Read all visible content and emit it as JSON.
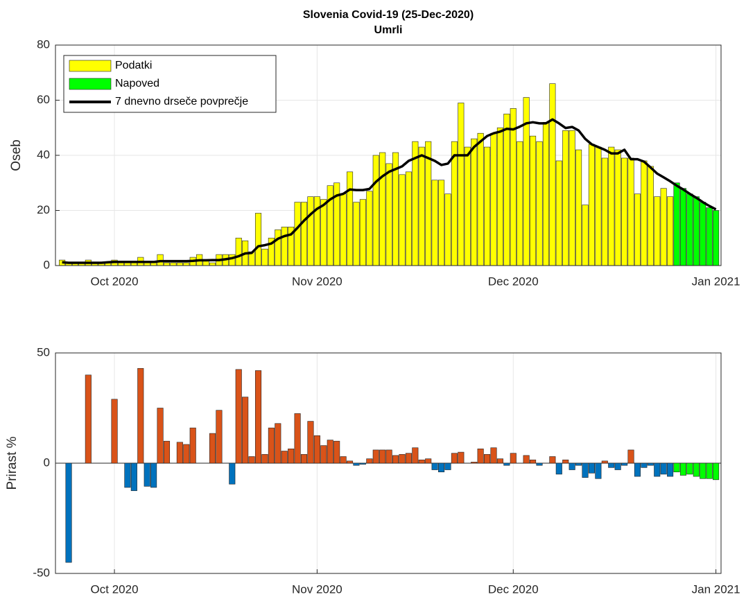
{
  "chart_data": [
    {
      "type": "bar",
      "title": "Slovenia Covid-19 (25-Dec-2020)",
      "subtitle": "Umrli",
      "ylabel": "Oseb",
      "categories": [
        null,
        null,
        null,
        null,
        null,
        null,
        null,
        null,
        "Oct 2020",
        null,
        null,
        null,
        null,
        null,
        null,
        null,
        null,
        null,
        null,
        null,
        null,
        null,
        null,
        null,
        null,
        null,
        null,
        null,
        null,
        null,
        null,
        null,
        null,
        null,
        null,
        null,
        null,
        null,
        null,
        "Nov 2020",
        null,
        null,
        null,
        null,
        null,
        null,
        null,
        null,
        null,
        null,
        null,
        null,
        null,
        null,
        null,
        null,
        null,
        null,
        null,
        null,
        null,
        null,
        null,
        null,
        null,
        null,
        null,
        null,
        null,
        "Dec 2020",
        null,
        null,
        null,
        null,
        null,
        null,
        null,
        null,
        null,
        null,
        null,
        null,
        null,
        null,
        null,
        null,
        null,
        null,
        null,
        null,
        null,
        null,
        null,
        null,
        null,
        null,
        null,
        null,
        null,
        null,
        "Jan 2021"
      ],
      "ylim": [
        0,
        80
      ],
      "yticks": [
        0,
        20,
        40,
        60,
        80
      ],
      "grid": true,
      "legend": "upper left",
      "series": [
        {
          "name": "Podatki",
          "type": "bar",
          "color": "#ffff00",
          "values": [
            2,
            1,
            1,
            1,
            2,
            1,
            1,
            1,
            2,
            1,
            1,
            1,
            3,
            1,
            1,
            4,
            1,
            1,
            1,
            1,
            3,
            4,
            2,
            1,
            4,
            4,
            4,
            10,
            9,
            5,
            19,
            6,
            10,
            13,
            14,
            14,
            23,
            23,
            25,
            25,
            24,
            29,
            30,
            26,
            34,
            23,
            24,
            27,
            40,
            41,
            37,
            41,
            33,
            34,
            45,
            43,
            45,
            31,
            31,
            26,
            45,
            59,
            43,
            46,
            48,
            43,
            48,
            50,
            55,
            57,
            45,
            61,
            47,
            45,
            52,
            66,
            38,
            49,
            49,
            42,
            22,
            44,
            43,
            39,
            43,
            42,
            39,
            39,
            26,
            38,
            36,
            25,
            28,
            25,
            null,
            null,
            null,
            null,
            null,
            null,
            null
          ]
        },
        {
          "name": "Napoved",
          "type": "bar",
          "color": "#00ff00",
          "values": [
            null,
            null,
            null,
            null,
            null,
            null,
            null,
            null,
            null,
            null,
            null,
            null,
            null,
            null,
            null,
            null,
            null,
            null,
            null,
            null,
            null,
            null,
            null,
            null,
            null,
            null,
            null,
            null,
            null,
            null,
            null,
            null,
            null,
            null,
            null,
            null,
            null,
            null,
            null,
            null,
            null,
            null,
            null,
            null,
            null,
            null,
            null,
            null,
            null,
            null,
            null,
            null,
            null,
            null,
            null,
            null,
            null,
            null,
            null,
            null,
            null,
            null,
            null,
            null,
            null,
            null,
            null,
            null,
            null,
            null,
            null,
            null,
            null,
            null,
            null,
            null,
            null,
            null,
            null,
            null,
            null,
            null,
            null,
            null,
            null,
            null,
            null,
            null,
            null,
            null,
            null,
            null,
            null,
            null,
            30,
            28,
            26,
            25,
            23,
            21,
            20
          ]
        },
        {
          "name": "7 dnevno drseče povprečje",
          "type": "line",
          "color": "#000000",
          "values": [
            1.2,
            1,
            1,
            1,
            1,
            1,
            1,
            1.2,
            1.3,
            1.3,
            1.3,
            1.3,
            1.3,
            1.3,
            1.3,
            1.6,
            1.6,
            1.6,
            1.6,
            1.6,
            1.7,
            1.9,
            1.9,
            2,
            2,
            2.3,
            2.7,
            3.4,
            4.4,
            4.6,
            7,
            7.4,
            8,
            9.7,
            10.7,
            11.3,
            13.7,
            16.3,
            18.6,
            20.6,
            22,
            24,
            25.4,
            26,
            27.6,
            27.4,
            27.4,
            27.8,
            30.4,
            32.4,
            34,
            35,
            36,
            38,
            39,
            40,
            39,
            38,
            36.5,
            37,
            40,
            40,
            40,
            43,
            45,
            47,
            48,
            48.6,
            49.6,
            49.4,
            50.4,
            51.6,
            52,
            51.6,
            51.6,
            53,
            51.6,
            49.9,
            50.3,
            49,
            46,
            44,
            43,
            42,
            40.7,
            40.7,
            42,
            38.6,
            38.6,
            37.7,
            35.6,
            33.4,
            32,
            30.6,
            29,
            27.6,
            26,
            24.6,
            23,
            21.6,
            20.4
          ]
        }
      ]
    },
    {
      "type": "bar",
      "ylabel": "Prirast %",
      "categories": [
        null,
        null,
        null,
        null,
        null,
        null,
        null,
        null,
        "Oct 2020",
        null,
        null,
        null,
        null,
        null,
        null,
        null,
        null,
        null,
        null,
        null,
        null,
        null,
        null,
        null,
        null,
        null,
        null,
        null,
        null,
        null,
        null,
        null,
        null,
        null,
        null,
        null,
        null,
        null,
        null,
        "Nov 2020",
        null,
        null,
        null,
        null,
        null,
        null,
        null,
        null,
        null,
        null,
        null,
        null,
        null,
        null,
        null,
        null,
        null,
        null,
        null,
        null,
        null,
        null,
        null,
        null,
        null,
        null,
        null,
        null,
        null,
        "Dec 2020",
        null,
        null,
        null,
        null,
        null,
        null,
        null,
        null,
        null,
        null,
        null,
        null,
        null,
        null,
        null,
        null,
        null,
        null,
        null,
        null,
        null,
        null,
        null,
        null,
        null,
        null,
        null,
        null,
        null,
        null,
        "Jan 2021"
      ],
      "ylim": [
        -50,
        50
      ],
      "yticks": [
        -50,
        0,
        50
      ],
      "grid": true,
      "series": [
        {
          "type": "bar",
          "color": "#d95319",
          "negative_color": "#0072bd",
          "values": [
            null,
            -45,
            0,
            0,
            40,
            0,
            0,
            0,
            29,
            0,
            -11,
            -12.5,
            43,
            -10.5,
            -11,
            25,
            10,
            0,
            9.5,
            8.5,
            16,
            0,
            0,
            13.5,
            24,
            0,
            -9.5,
            42.5,
            30,
            3,
            42,
            4,
            16,
            18,
            5.5,
            6.5,
            22.5,
            4,
            19,
            12.5,
            8,
            10.5,
            10,
            3,
            1,
            -1,
            -0.5,
            2,
            6,
            6,
            6,
            3.5,
            4,
            4.5,
            7,
            1.5,
            2,
            -3,
            -4,
            -3,
            4.5,
            5,
            0,
            0.5,
            6.5,
            4,
            7,
            2,
            -1,
            4.5,
            0,
            3.5,
            1.5,
            -1,
            0,
            3,
            -5,
            1.5,
            -3,
            -1,
            -6.5,
            -4.5,
            -7,
            1,
            -2,
            -3,
            -1,
            6,
            -6,
            -2,
            -1,
            -6,
            -5,
            -6,
            null,
            null,
            null,
            null,
            null,
            null,
            null
          ]
        },
        {
          "type": "bar",
          "color": "#00ff00",
          "values": [
            null,
            null,
            null,
            null,
            null,
            null,
            null,
            null,
            null,
            null,
            null,
            null,
            null,
            null,
            null,
            null,
            null,
            null,
            null,
            null,
            null,
            null,
            null,
            null,
            null,
            null,
            null,
            null,
            null,
            null,
            null,
            null,
            null,
            null,
            null,
            null,
            null,
            null,
            null,
            null,
            null,
            null,
            null,
            null,
            null,
            null,
            null,
            null,
            null,
            null,
            null,
            null,
            null,
            null,
            null,
            null,
            null,
            null,
            null,
            null,
            null,
            null,
            null,
            null,
            null,
            null,
            null,
            null,
            null,
            null,
            null,
            null,
            null,
            null,
            null,
            null,
            null,
            null,
            null,
            null,
            null,
            null,
            null,
            null,
            null,
            null,
            null,
            null,
            null,
            null,
            null,
            null,
            null,
            null,
            -4,
            -5.5,
            -5,
            -6,
            -7,
            -7,
            -7.5
          ]
        }
      ]
    }
  ]
}
